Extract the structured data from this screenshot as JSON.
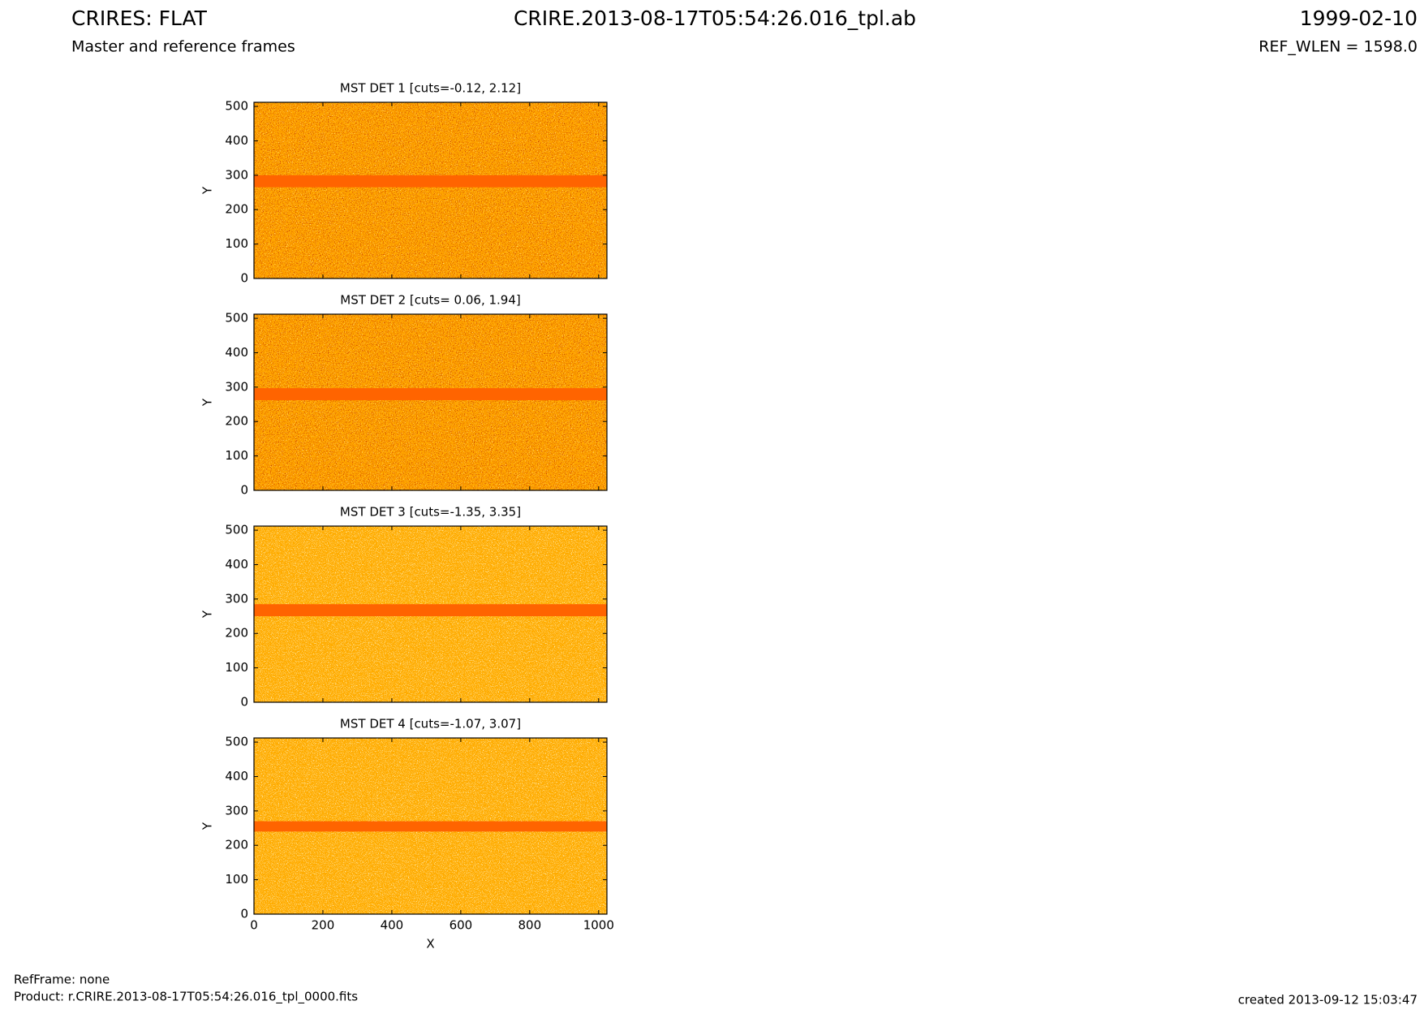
{
  "header": {
    "title": "CRIRES: FLAT",
    "subtitle": "Master and reference frames",
    "file": "CRIRE.2013-08-17T05:54:26.016_tpl.ab",
    "date": "1999-02-10",
    "ref_wlen": "REF_WLEN = 1598.0"
  },
  "chart_data": [
    {
      "type": "image",
      "title": "MST DET 1 [cuts=-0.12, 2.12]",
      "ylabel": "Y",
      "xlim": [
        0,
        1024
      ],
      "ylim": [
        0,
        512
      ],
      "xticks": [
        0,
        200,
        400,
        600,
        800,
        1000
      ],
      "yticks": [
        0,
        100,
        200,
        300,
        400,
        500
      ],
      "show_xticklabels": false,
      "band": [
        265,
        300
      ],
      "color": "#ff6400",
      "style": "dark"
    },
    {
      "type": "image",
      "title": "MST DET 2 [cuts= 0.06, 1.94]",
      "ylabel": "Y",
      "xlim": [
        0,
        1024
      ],
      "ylim": [
        0,
        512
      ],
      "xticks": [
        0,
        200,
        400,
        600,
        800,
        1000
      ],
      "yticks": [
        0,
        100,
        200,
        300,
        400,
        500
      ],
      "show_xticklabels": false,
      "band": [
        262,
        297
      ],
      "color": "#ff6400",
      "style": "dark"
    },
    {
      "type": "image",
      "title": "MST DET 3 [cuts=-1.35, 3.35]",
      "ylabel": "Y",
      "xlim": [
        0,
        1024
      ],
      "ylim": [
        0,
        512
      ],
      "xticks": [
        0,
        200,
        400,
        600,
        800,
        1000
      ],
      "yticks": [
        0,
        100,
        200,
        300,
        400,
        500
      ],
      "show_xticklabels": false,
      "band": [
        250,
        285
      ],
      "color": "#ff6400",
      "style": "light"
    },
    {
      "type": "image",
      "title": "MST DET 4 [cuts=-1.07, 3.07]",
      "ylabel": "Y",
      "xlabel": "X",
      "xlim": [
        0,
        1024
      ],
      "ylim": [
        0,
        512
      ],
      "xticks": [
        0,
        200,
        400,
        600,
        800,
        1000
      ],
      "yticks": [
        0,
        100,
        200,
        300,
        400,
        500
      ],
      "show_xticklabels": true,
      "band": [
        240,
        270
      ],
      "color": "#ff6400",
      "style": "light"
    }
  ],
  "footer": {
    "ref_frame": "RefFrame: none",
    "product": "Product: r.CRIRE.2013-08-17T05:54:26.016_tpl_0000.fits",
    "created": "created 2013-09-12 15:03:47"
  }
}
